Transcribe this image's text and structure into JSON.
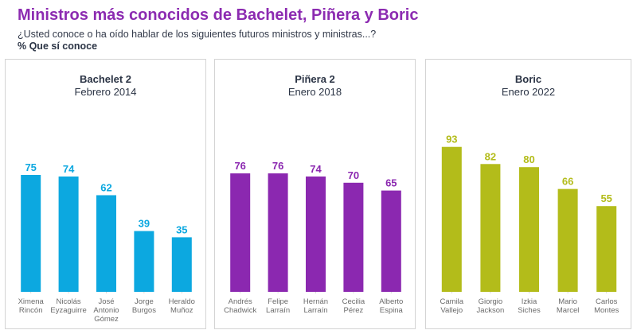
{
  "title": "Ministros más conocidos de Bachelet, Piñera y Boric",
  "question": "¿Usted conoce o ha oído hablar de los siguientes futuros ministros y ministras...?",
  "measure": "% Que sí conoce",
  "chart_data": [
    {
      "type": "bar",
      "title": "Bachelet 2",
      "subtitle": "Febrero 2014",
      "color": "#0ca8e0",
      "categories": [
        [
          "Ximena",
          "Rincón"
        ],
        [
          "Nicolás",
          "Eyzaguirre"
        ],
        [
          "José",
          "Antonio",
          "Gómez"
        ],
        [
          "Jorge",
          "Burgos"
        ],
        [
          "Heraldo",
          "Muñoz"
        ]
      ],
      "values": [
        75,
        74,
        62,
        39,
        35
      ],
      "ylim": [
        0,
        100
      ],
      "grid": false,
      "legend": "none"
    },
    {
      "type": "bar",
      "title": "Piñera 2",
      "subtitle": "Enero 2018",
      "color": "#8b28b0",
      "categories": [
        [
          "Andrés",
          "Chadwick"
        ],
        [
          "Felipe",
          "Larraín"
        ],
        [
          "Hernán",
          "Larraín"
        ],
        [
          "Cecilia",
          "Pérez"
        ],
        [
          "Alberto",
          "Espina"
        ]
      ],
      "values": [
        76,
        76,
        74,
        70,
        65
      ],
      "ylim": [
        0,
        100
      ],
      "grid": false,
      "legend": "none"
    },
    {
      "type": "bar",
      "title": "Boric",
      "subtitle": "Enero 2022",
      "color": "#b3bc1a",
      "categories": [
        [
          "Camila",
          "Vallejo"
        ],
        [
          "Giorgio",
          "Jackson"
        ],
        [
          "Izkia",
          "Siches"
        ],
        [
          "Mario",
          "Marcel"
        ],
        [
          "Carlos",
          "Montes"
        ]
      ],
      "values": [
        93,
        82,
        80,
        66,
        55
      ],
      "ylim": [
        0,
        100
      ],
      "grid": false,
      "legend": "none"
    }
  ]
}
